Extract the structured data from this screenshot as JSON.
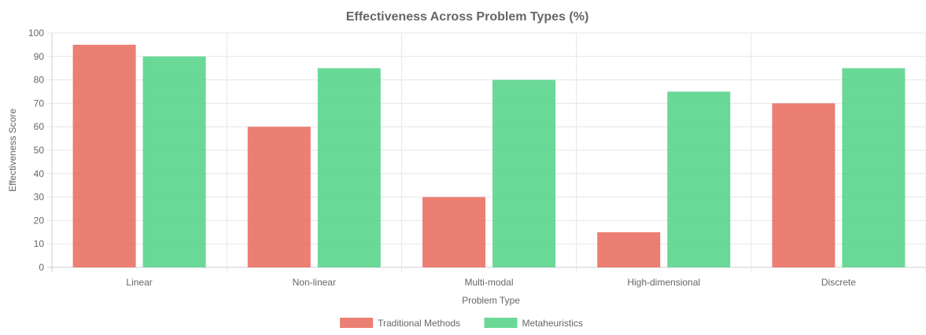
{
  "chart_data": {
    "type": "bar",
    "title": "Effectiveness Across Problem Types (%)",
    "xlabel": "Problem Type",
    "ylabel": "Effectiveness Score",
    "categories": [
      "Linear",
      "Non-linear",
      "Multi-modal",
      "High-dimensional",
      "Discrete"
    ],
    "series": [
      {
        "name": "Traditional Methods",
        "values": [
          95,
          60,
          30,
          15,
          70
        ],
        "color": "#e8695b"
      },
      {
        "name": "Metaheuristics",
        "values": [
          90,
          85,
          80,
          75,
          85
        ],
        "color": "#50d185"
      }
    ],
    "ylim": [
      0,
      100
    ],
    "yticks": [
      0,
      10,
      20,
      30,
      40,
      50,
      60,
      70,
      80,
      90,
      100
    ],
    "grid": true,
    "legend_position": "bottom"
  }
}
